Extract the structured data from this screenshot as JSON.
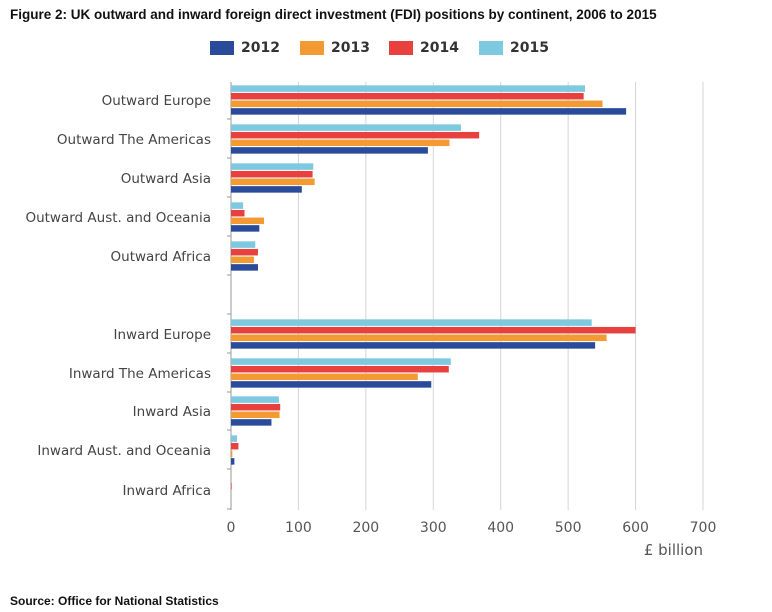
{
  "title": "Figure 2: UK outward and inward foreign direct investment (FDI) positions by continent, 2006 to 2015",
  "source": "Source: Office for National Statistics",
  "chart_data": {
    "type": "bar",
    "orientation": "horizontal",
    "categories": [
      "Outward Europe",
      "Outward The Americas",
      "Outward Asia",
      "Outward Aust. and Oceania",
      "Outward Africa",
      "",
      "Inward Europe",
      "Inward The Americas",
      "Inward Asia",
      "Inward Aust. and Oceania",
      "Inward Africa"
    ],
    "series": [
      {
        "name": "2012",
        "color": "#2a4a9a",
        "values": [
          586,
          292,
          105,
          42,
          40,
          null,
          540,
          297,
          60,
          5,
          0
        ]
      },
      {
        "name": "2013",
        "color": "#f39a32",
        "values": [
          551,
          324,
          124,
          49,
          34,
          null,
          557,
          277,
          72,
          2,
          0
        ]
      },
      {
        "name": "2014",
        "color": "#e8403f",
        "values": [
          523,
          368,
          121,
          20,
          40,
          null,
          600,
          323,
          73,
          11,
          1
        ]
      },
      {
        "name": "2015",
        "color": "#7ec8e0",
        "values": [
          525,
          341,
          122,
          18,
          36,
          null,
          535,
          326,
          71,
          9,
          0
        ]
      }
    ],
    "xlabel": "£ billion",
    "xlim": [
      0,
      700
    ],
    "xticks": [
      0,
      100,
      200,
      300,
      400,
      500,
      600,
      700
    ],
    "grid": "vertical",
    "legend_position": "top"
  }
}
